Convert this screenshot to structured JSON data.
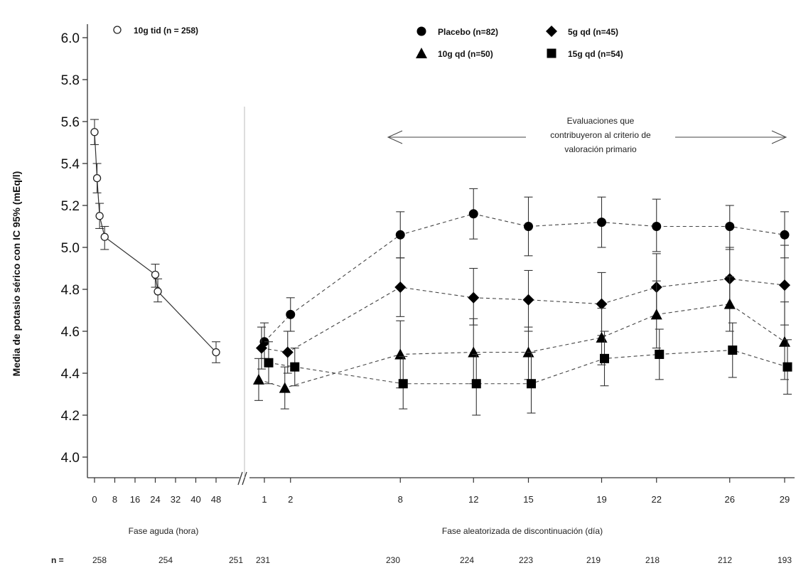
{
  "chart_data": {
    "type": "line",
    "ylabel": "Media de potasio sérico con IC 95% (mEq/l)",
    "ylim": [
      4.0,
      6.0
    ],
    "yticks": [
      "4.0",
      "4.2",
      "4.4",
      "4.6",
      "4.8",
      "5.0",
      "5.2",
      "5.4",
      "5.6",
      "5.8",
      "6.0"
    ],
    "acute_phase": {
      "xlabel": "Fase aguda (hora)",
      "xticks": [
        "0",
        "8",
        "16",
        "24",
        "32",
        "40",
        "48"
      ],
      "series": [
        {
          "name": "10g tid (n = 258)",
          "marker": "open-circle",
          "line": "solid",
          "points": [
            {
              "x": 0,
              "y": 5.55,
              "lo": 5.49,
              "hi": 5.61
            },
            {
              "x": 1,
              "y": 5.33,
              "lo": 5.26,
              "hi": 5.4
            },
            {
              "x": 2,
              "y": 5.15,
              "lo": 5.09,
              "hi": 5.21
            },
            {
              "x": 4,
              "y": 5.05,
              "lo": 4.99,
              "hi": 5.1
            },
            {
              "x": 24,
              "y": 4.87,
              "lo": 4.81,
              "hi": 4.92
            },
            {
              "x": 25,
              "y": 4.79,
              "lo": 4.74,
              "hi": 4.85
            },
            {
              "x": 48,
              "y": 4.5,
              "lo": 4.45,
              "hi": 4.55
            }
          ]
        }
      ]
    },
    "randomized_phase": {
      "xlabel": "Fase aleatorizada de discontinuación (día)",
      "xticks": [
        "1",
        "2",
        "8",
        "12",
        "15",
        "19",
        "22",
        "26",
        "29"
      ],
      "annotation": [
        "Evaluaciones que",
        "contribuyeron al criterio de",
        "valoración primario"
      ],
      "series": [
        {
          "name": "Placebo (n=82)",
          "marker": "filled-circle",
          "points": [
            {
              "x": 1,
              "y": 4.55,
              "lo": 4.47,
              "hi": 4.64
            },
            {
              "x": 2,
              "y": 4.68,
              "lo": 4.6,
              "hi": 4.76
            },
            {
              "x": 8,
              "y": 5.06,
              "lo": 4.95,
              "hi": 5.17
            },
            {
              "x": 12,
              "y": 5.16,
              "lo": 5.04,
              "hi": 5.28
            },
            {
              "x": 15,
              "y": 5.1,
              "lo": 4.96,
              "hi": 5.24
            },
            {
              "x": 19,
              "y": 5.12,
              "lo": 5.0,
              "hi": 5.24
            },
            {
              "x": 22,
              "y": 5.1,
              "lo": 4.98,
              "hi": 5.23
            },
            {
              "x": 26,
              "y": 5.1,
              "lo": 4.99,
              "hi": 5.2
            },
            {
              "x": 29,
              "y": 5.06,
              "lo": 4.95,
              "hi": 5.17
            }
          ]
        },
        {
          "name": "5g qd (n=45)",
          "marker": "diamond",
          "points": [
            {
              "x": 1,
              "y": 4.52,
              "lo": 4.42,
              "hi": 4.62
            },
            {
              "x": 2,
              "y": 4.5,
              "lo": 4.4,
              "hi": 4.6
            },
            {
              "x": 8,
              "y": 4.81,
              "lo": 4.67,
              "hi": 4.95
            },
            {
              "x": 12,
              "y": 4.76,
              "lo": 4.63,
              "hi": 4.9
            },
            {
              "x": 15,
              "y": 4.75,
              "lo": 4.6,
              "hi": 4.89
            },
            {
              "x": 19,
              "y": 4.73,
              "lo": 4.58,
              "hi": 4.88
            },
            {
              "x": 22,
              "y": 4.81,
              "lo": 4.66,
              "hi": 4.97
            },
            {
              "x": 26,
              "y": 4.85,
              "lo": 4.71,
              "hi": 5.0
            },
            {
              "x": 29,
              "y": 4.82,
              "lo": 4.63,
              "hi": 5.01
            }
          ]
        },
        {
          "name": "10g qd (n=50)",
          "marker": "triangle",
          "points": [
            {
              "x": 1,
              "y": 4.37,
              "lo": 4.27,
              "hi": 4.47
            },
            {
              "x": 2,
              "y": 4.33,
              "lo": 4.23,
              "hi": 4.43
            },
            {
              "x": 8,
              "y": 4.49,
              "lo": 4.33,
              "hi": 4.65
            },
            {
              "x": 12,
              "y": 4.5,
              "lo": 4.35,
              "hi": 4.66
            },
            {
              "x": 15,
              "y": 4.5,
              "lo": 4.37,
              "hi": 4.62
            },
            {
              "x": 19,
              "y": 4.57,
              "lo": 4.44,
              "hi": 4.71
            },
            {
              "x": 22,
              "y": 4.68,
              "lo": 4.52,
              "hi": 4.84
            },
            {
              "x": 26,
              "y": 4.73,
              "lo": 4.6,
              "hi": 4.86
            },
            {
              "x": 29,
              "y": 4.55,
              "lo": 4.37,
              "hi": 4.74
            }
          ]
        },
        {
          "name": "15g qd (n=54)",
          "marker": "square",
          "points": [
            {
              "x": 1,
              "y": 4.45,
              "lo": 4.35,
              "hi": 4.55
            },
            {
              "x": 2,
              "y": 4.43,
              "lo": 4.34,
              "hi": 4.52
            },
            {
              "x": 8,
              "y": 4.35,
              "lo": 4.23,
              "hi": 4.48
            },
            {
              "x": 12,
              "y": 4.35,
              "lo": 4.2,
              "hi": 4.49
            },
            {
              "x": 15,
              "y": 4.35,
              "lo": 4.21,
              "hi": 4.5
            },
            {
              "x": 19,
              "y": 4.47,
              "lo": 4.34,
              "hi": 4.6
            },
            {
              "x": 22,
              "y": 4.49,
              "lo": 4.37,
              "hi": 4.61
            },
            {
              "x": 26,
              "y": 4.51,
              "lo": 4.38,
              "hi": 4.64
            },
            {
              "x": 29,
              "y": 4.43,
              "lo": 4.3,
              "hi": 4.56
            }
          ]
        }
      ]
    },
    "n_row": {
      "label": "n =",
      "values": [
        "258",
        "254",
        "251",
        "231",
        "230",
        "224",
        "223",
        "219",
        "218",
        "212",
        "193"
      ]
    },
    "legend_placement": "top",
    "grid": false
  }
}
